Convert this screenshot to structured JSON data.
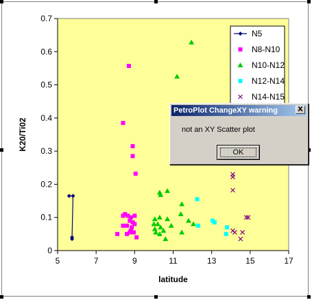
{
  "chart_data": {
    "type": "scatter",
    "title": "",
    "xlabel": "latitude",
    "ylabel": "K20/Ti02",
    "xlim": [
      5,
      17
    ],
    "ylim": [
      0,
      0.7
    ],
    "xticks": [
      5,
      7,
      9,
      11,
      13,
      15,
      17
    ],
    "yticks": [
      0,
      0.1,
      0.2,
      0.3,
      0.4,
      0.5,
      0.6,
      0.7
    ],
    "xtick_labels": [
      "5",
      "7",
      "9",
      "11",
      "13",
      "15",
      "17"
    ],
    "ytick_labels": [
      "0",
      "0.1",
      "0.2",
      "0.3",
      "0.4",
      "0.5",
      "0.6",
      "0.7"
    ],
    "grid": false,
    "legend_position": "top-right",
    "plot_bg": "#ffff99",
    "series": [
      {
        "name": "N5",
        "color": "#000080",
        "marker": "diamond-line",
        "points": [
          [
            5.6,
            0.165
          ],
          [
            5.8,
            0.165
          ],
          [
            5.75,
            0.04
          ],
          [
            5.75,
            0.035
          ]
        ]
      },
      {
        "name": "N8-N10",
        "color": "#ff00ff",
        "marker": "square",
        "points": [
          [
            8.7,
            0.557
          ],
          [
            8.4,
            0.385
          ],
          [
            8.9,
            0.315
          ],
          [
            8.9,
            0.285
          ],
          [
            9.05,
            0.232
          ],
          [
            8.4,
            0.105
          ],
          [
            8.5,
            0.11
          ],
          [
            8.65,
            0.105
          ],
          [
            8.8,
            0.1
          ],
          [
            9.0,
            0.105
          ],
          [
            8.75,
            0.09
          ],
          [
            8.9,
            0.085
          ],
          [
            9.0,
            0.08
          ],
          [
            8.4,
            0.075
          ],
          [
            8.6,
            0.075
          ],
          [
            8.85,
            0.07
          ],
          [
            8.8,
            0.06
          ],
          [
            8.95,
            0.055
          ],
          [
            8.75,
            0.055
          ],
          [
            8.1,
            0.05
          ],
          [
            8.6,
            0.05
          ],
          [
            9.1,
            0.04
          ]
        ]
      },
      {
        "name": "N10-N12",
        "color": "#00cc00",
        "marker": "triangle",
        "points": [
          [
            11.95,
            0.628
          ],
          [
            11.2,
            0.525
          ],
          [
            10.7,
            0.18
          ],
          [
            10.3,
            0.175
          ],
          [
            10.35,
            0.168
          ],
          [
            11.45,
            0.14
          ],
          [
            10.05,
            0.095
          ],
          [
            10.3,
            0.1
          ],
          [
            10.7,
            0.095
          ],
          [
            11.4,
            0.11
          ],
          [
            12.05,
            0.08
          ],
          [
            11.8,
            0.09
          ],
          [
            10.0,
            0.08
          ],
          [
            10.2,
            0.08
          ],
          [
            10.35,
            0.07
          ],
          [
            10.05,
            0.065
          ],
          [
            10.5,
            0.06
          ],
          [
            10.9,
            0.075
          ],
          [
            11.45,
            0.055
          ],
          [
            10.1,
            0.055
          ],
          [
            10.3,
            0.05
          ],
          [
            10.6,
            0.035
          ]
        ]
      },
      {
        "name": "N12-N14",
        "color": "#00ffff",
        "marker": "square",
        "points": [
          [
            12.25,
            0.155
          ],
          [
            13.05,
            0.09
          ],
          [
            13.15,
            0.085
          ],
          [
            12.3,
            0.075
          ],
          [
            13.8,
            0.07
          ],
          [
            13.75,
            0.05
          ]
        ]
      },
      {
        "name": "N14-N15",
        "color": "#800080",
        "marker": "x",
        "points": [
          [
            14.1,
            0.23
          ],
          [
            14.1,
            0.222
          ],
          [
            14.1,
            0.182
          ],
          [
            14.8,
            0.1
          ],
          [
            14.9,
            0.1
          ],
          [
            14.1,
            0.06
          ],
          [
            14.2,
            0.055
          ],
          [
            14.6,
            0.055
          ],
          [
            14.5,
            0.035
          ]
        ]
      }
    ]
  },
  "dialog": {
    "title": "PetroPlot ChangeXY warning",
    "close_symbol": "X",
    "message": "not an XY Scatter plot",
    "ok_label": "OK"
  }
}
